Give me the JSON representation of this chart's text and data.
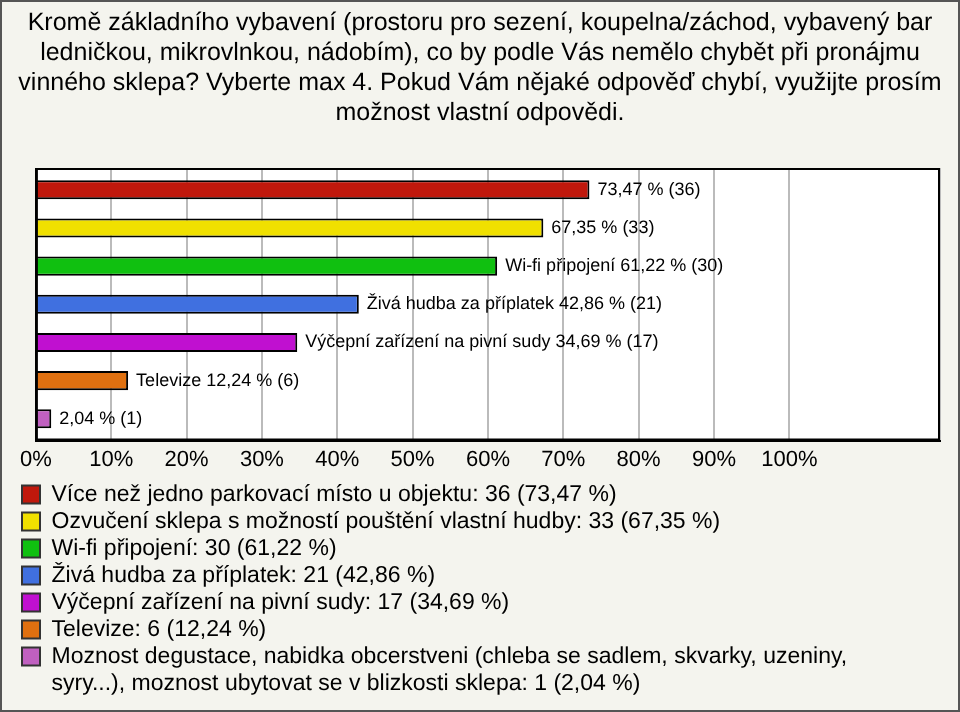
{
  "chart_data": {
    "type": "bar",
    "orientation": "horizontal",
    "title": "Kromě základního vybavení (prostoru pro sezení, koupelna/záchod, vybavený bar ledničkou, mikrovlnkou, nádobím), co by podle Vás nemělo chybět při pronájmu vinného sklepa? Vyberte max 4. Pokud Vám nějaké odpověď chybí, využijte prosím možnost vlastní odpovědi.",
    "categories": [
      null
    ],
    "series": [
      {
        "name": "Více než jedno parkovací místo u objektu: 36 (73,47 %)",
        "color": "#c0180c",
        "values": [
          73.47
        ],
        "value_labels": [
          "73,47 % (36)"
        ]
      },
      {
        "name": "Ozvučení sklepa s možností pouštění vlastní hudby: 33 (67,35 %)",
        "color": "#f0e000",
        "values": [
          67.35
        ],
        "value_labels": [
          "67,35 % (33)"
        ]
      },
      {
        "name": "Wi-fi připojení: 30 (61,22 %)",
        "color": "#10c010",
        "values": [
          61.22
        ],
        "value_labels": [
          "Wi-fi připojení 61,22 % (30)"
        ]
      },
      {
        "name": "Živá hudba za příplatek: 21 (42,86 %)",
        "color": "#4070e0",
        "values": [
          42.86
        ],
        "value_labels": [
          "Živá hudba za příplatek 42,86 % (21)"
        ]
      },
      {
        "name": "Výčepní zařízení na pivní sudy: 17 (34,69 %)",
        "color": "#c010d0",
        "values": [
          34.69
        ],
        "value_labels": [
          "Výčepní zařízení na pivní sudy 34,69 % (17)"
        ]
      },
      {
        "name": "Televize: 6 (12,24 %)",
        "color": "#e07010",
        "values": [
          12.24
        ],
        "value_labels": [
          "Televize 12,24 % (6)"
        ]
      },
      {
        "name": "Moznost degustace, nabidka obcerstveni (chleba se sadlem, skvarky, uzeniny, syry...), moznost ubytovat se v blizkosti sklepa: 1 (2,04 %)",
        "color": "#c060c0",
        "values": [
          2.04
        ],
        "value_labels": [
          "2,04 % (1)"
        ]
      }
    ],
    "xlim": [
      0,
      120
    ],
    "xticks": [
      {
        "value": 0,
        "label": "0%"
      },
      {
        "value": 10,
        "label": "10%"
      },
      {
        "value": 20,
        "label": "20%"
      },
      {
        "value": 30,
        "label": "30%"
      },
      {
        "value": 40,
        "label": "40%"
      },
      {
        "value": 50,
        "label": "50%"
      },
      {
        "value": 60,
        "label": "60%"
      },
      {
        "value": 70,
        "label": "70%"
      },
      {
        "value": 80,
        "label": "80%"
      },
      {
        "value": 90,
        "label": "90%"
      },
      {
        "value": 100,
        "label": "100%"
      },
      {
        "value": 120,
        "label": null
      }
    ],
    "grid": "x",
    "tick_labels": "x",
    "legend": "bottom"
  }
}
